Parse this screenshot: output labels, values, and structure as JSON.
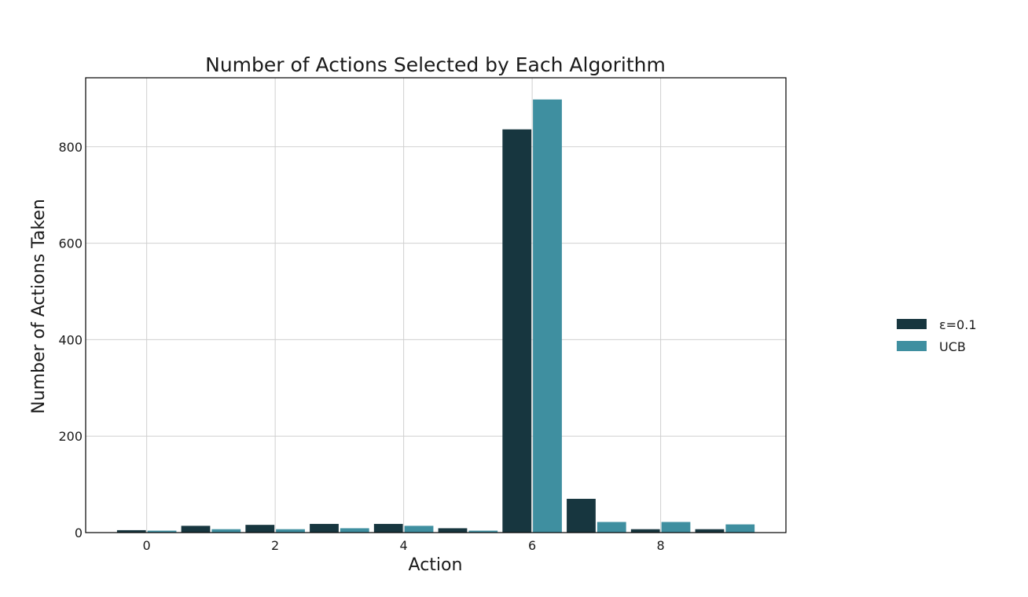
{
  "chart_data": {
    "type": "bar",
    "title": "Number of Actions Selected by Each Algorithm",
    "xlabel": "Action",
    "ylabel": "Number of Actions Taken",
    "categories": [
      0,
      1,
      2,
      3,
      4,
      5,
      6,
      7,
      8,
      9
    ],
    "x_ticks": [
      0,
      2,
      4,
      6,
      8
    ],
    "y_ticks": [
      0,
      200,
      400,
      600,
      800
    ],
    "xlim": [
      -0.95,
      9.95
    ],
    "ylim": [
      0,
      943
    ],
    "grid": true,
    "legend_position": "right",
    "series": [
      {
        "name": "ε=0.1",
        "color": "#17363f",
        "values": [
          5,
          14,
          16,
          18,
          18,
          9,
          836,
          70,
          7,
          7
        ]
      },
      {
        "name": "UCB",
        "color": "#3f8fa0",
        "values": [
          4,
          7,
          7,
          9,
          14,
          4,
          898,
          22,
          22,
          17
        ]
      }
    ]
  }
}
